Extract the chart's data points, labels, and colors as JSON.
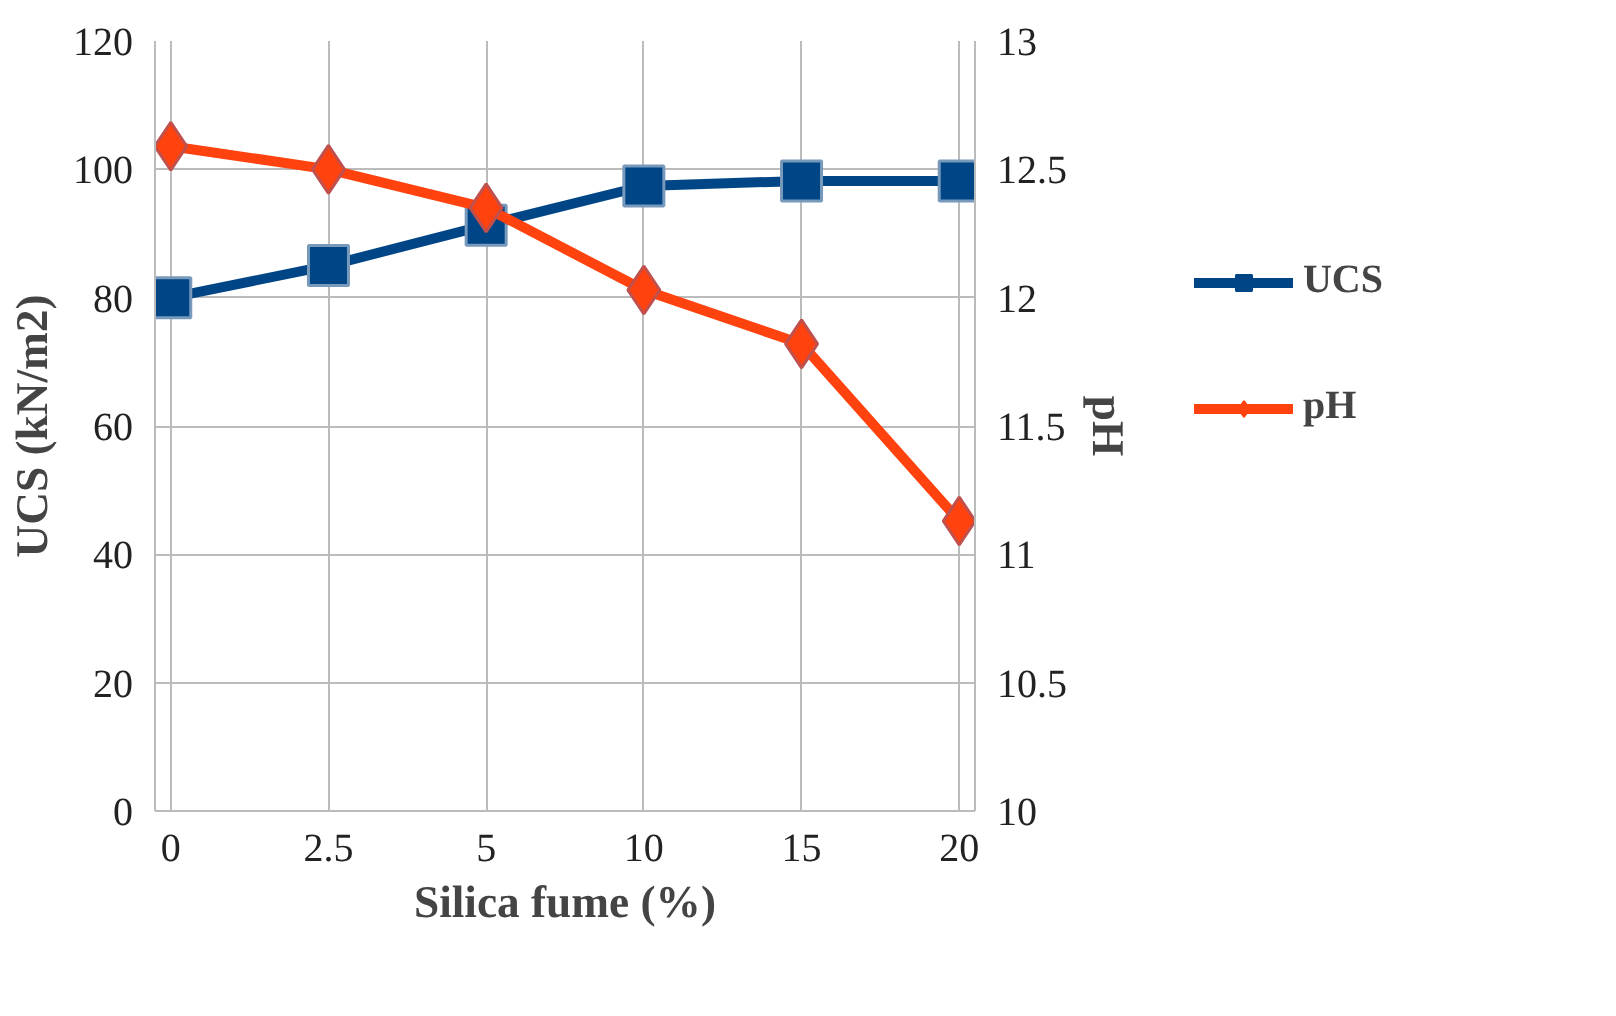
{
  "chart_data": {
    "type": "line",
    "xlabel": "Silica fume (%)",
    "ylabel": "UCS (kN/m2)",
    "y2label": "pH",
    "categories": [
      "0",
      "2.5",
      "5",
      "10",
      "15",
      "20"
    ],
    "series": [
      {
        "name": "UCS",
        "color": "#004586",
        "marker": "square",
        "values": [
          80,
          85,
          91.3,
          97.4,
          98.2,
          98.2
        ]
      },
      {
        "name": "pH",
        "color": "#ff420e",
        "marker": "diamond",
        "axis": "y2",
        "values": [
          12.59,
          12.5,
          12.35,
          12.03,
          11.82,
          11.13
        ]
      }
    ],
    "ylim": [
      0,
      120
    ],
    "yticks": [
      0,
      20,
      40,
      60,
      80,
      100,
      120
    ],
    "y2lim": [
      10,
      13
    ],
    "y2ticks": [
      10,
      10.5,
      11,
      11.5,
      12,
      12.5,
      13
    ],
    "grid": true,
    "legend": "right"
  }
}
